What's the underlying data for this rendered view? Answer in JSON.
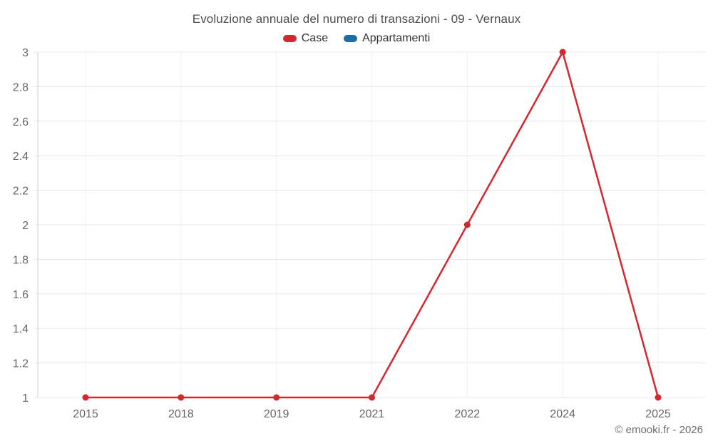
{
  "footer": "© emooki.fr - 2026",
  "colors": {
    "title_text": "#4d4d4d",
    "legend_text": "#333333",
    "tick_text": "#666666",
    "axis_line": "#cccccc",
    "h_gridline": "#e7e7e7",
    "v_gridline": "#f1f1f1",
    "background": "#ffffff",
    "case_red": "#d7272e",
    "appartamenti_blue": "#1c6ea4"
  },
  "chart_data": {
    "type": "line",
    "title": "Evoluzione annuale del numero di transazioni - 09 - Vernaux",
    "categories": [
      "2015",
      "2018",
      "2019",
      "2021",
      "2022",
      "2024",
      "2025"
    ],
    "series": [
      {
        "name": "Case",
        "color": "#d7272e",
        "values": [
          1,
          1,
          1,
          1,
          2,
          3,
          1
        ]
      },
      {
        "name": "Appartamenti",
        "color": "#1c6ea4",
        "values": []
      }
    ],
    "xlabel": "",
    "ylabel": "",
    "ylim": [
      1,
      3
    ],
    "yticks": [
      1,
      1.2,
      1.4,
      1.6,
      1.8,
      2,
      2.2,
      2.4,
      2.6,
      2.8,
      3
    ],
    "grid": true,
    "legend_position": "top",
    "marker": "circle",
    "annotations": []
  }
}
